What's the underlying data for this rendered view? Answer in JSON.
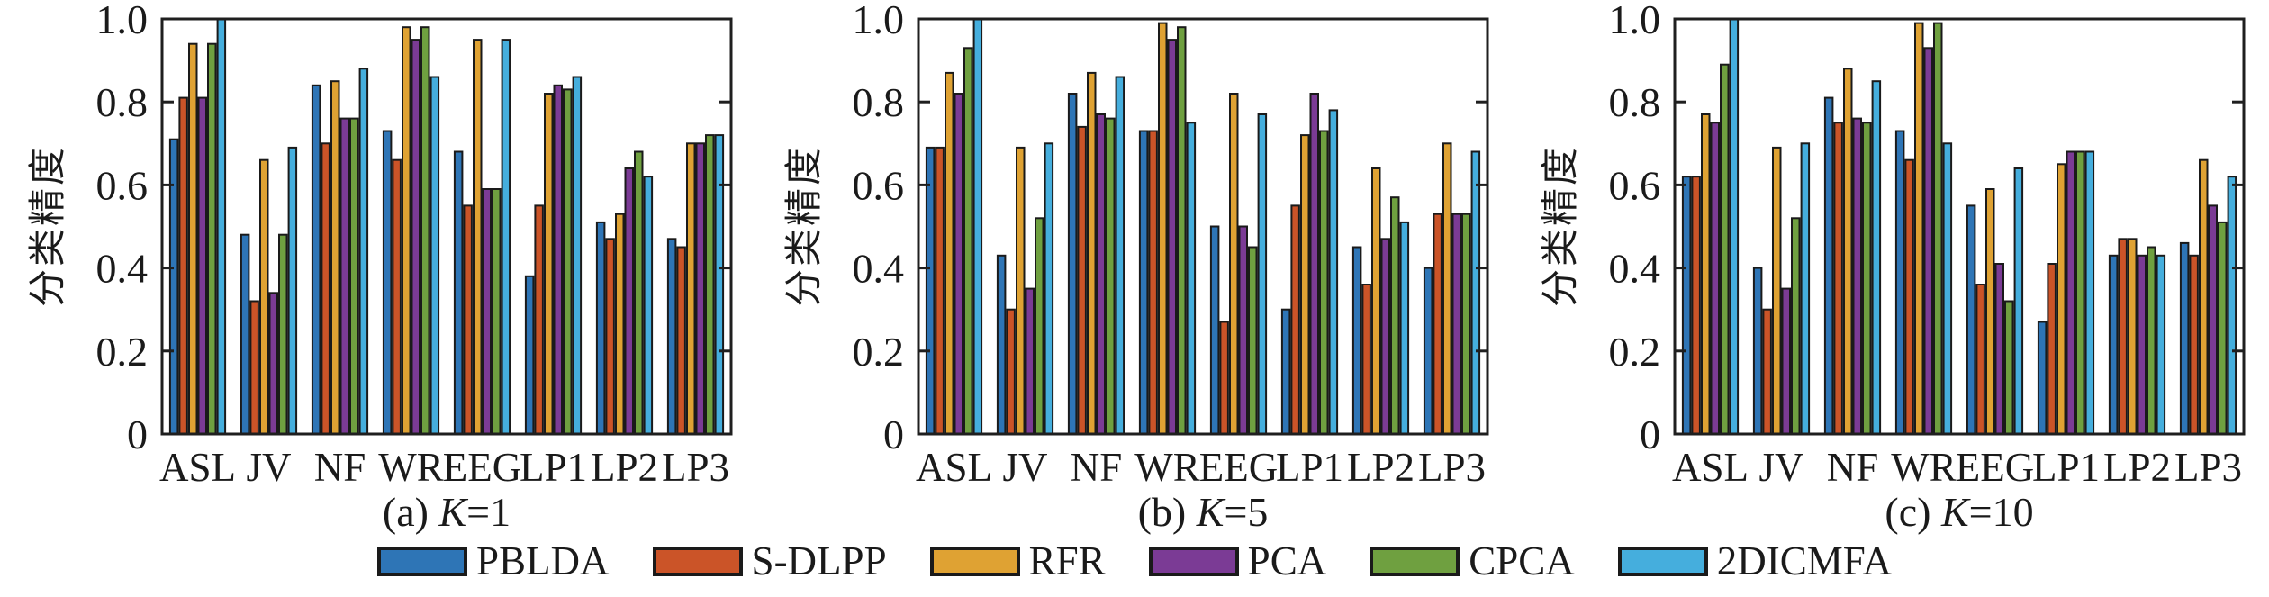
{
  "figure": {
    "background": "#ffffff",
    "ylabel": "分类精度"
  },
  "legend": {
    "position": "bottom",
    "items": [
      {
        "label": "PBLDA",
        "color": "#2E75B6"
      },
      {
        "label": "S-DLPP",
        "color": "#CB5428"
      },
      {
        "label": "RFR",
        "color": "#DFA233"
      },
      {
        "label": "PCA",
        "color": "#7B3B95"
      },
      {
        "label": "CPCA",
        "color": "#6FA040"
      },
      {
        "label": "2DICMFA",
        "color": "#45AEDD"
      }
    ]
  },
  "chart_data": [
    {
      "type": "bar",
      "title": "(a) K=1",
      "caption": {
        "prefix": "(a) ",
        "var": "K",
        "suffix": "=1"
      },
      "ylabel": "分类精度",
      "xlabel": "",
      "ylim": [
        0,
        1.0
      ],
      "yticks": [
        0,
        0.2,
        0.4,
        0.6,
        0.8,
        1.0
      ],
      "ytick_labels": [
        "0",
        "0.2",
        "0.4",
        "0.6",
        "0.8",
        "1.0"
      ],
      "grid": false,
      "categories": [
        "ASL",
        "JV",
        "NF",
        "WR",
        "EEG",
        "LP1",
        "LP2",
        "LP3"
      ],
      "series": [
        {
          "name": "PBLDA",
          "color": "#2E75B6",
          "values": [
            0.71,
            0.48,
            0.84,
            0.73,
            0.68,
            0.38,
            0.51,
            0.47
          ]
        },
        {
          "name": "S-DLPP",
          "color": "#CB5428",
          "values": [
            0.81,
            0.32,
            0.7,
            0.66,
            0.55,
            0.55,
            0.47,
            0.45
          ]
        },
        {
          "name": "RFR",
          "color": "#DFA233",
          "values": [
            0.94,
            0.66,
            0.85,
            0.98,
            0.95,
            0.82,
            0.53,
            0.7
          ]
        },
        {
          "name": "PCA",
          "color": "#7B3B95",
          "values": [
            0.81,
            0.34,
            0.76,
            0.95,
            0.59,
            0.84,
            0.64,
            0.7
          ]
        },
        {
          "name": "CPCA",
          "color": "#6FA040",
          "values": [
            0.94,
            0.48,
            0.76,
            0.98,
            0.59,
            0.83,
            0.68,
            0.72
          ]
        },
        {
          "name": "2DICMFA",
          "color": "#45AEDD",
          "values": [
            1.0,
            0.69,
            0.88,
            0.86,
            0.95,
            0.86,
            0.62,
            0.72
          ]
        }
      ]
    },
    {
      "type": "bar",
      "title": "(b) K=5",
      "caption": {
        "prefix": "(b) ",
        "var": "K",
        "suffix": "=5"
      },
      "ylabel": "分类精度",
      "xlabel": "",
      "ylim": [
        0,
        1.0
      ],
      "yticks": [
        0,
        0.2,
        0.4,
        0.6,
        0.8,
        1.0
      ],
      "ytick_labels": [
        "0",
        "0.2",
        "0.4",
        "0.6",
        "0.8",
        "1.0"
      ],
      "grid": false,
      "categories": [
        "ASL",
        "JV",
        "NF",
        "WR",
        "EEG",
        "LP1",
        "LP2",
        "LP3"
      ],
      "series": [
        {
          "name": "PBLDA",
          "color": "#2E75B6",
          "values": [
            0.69,
            0.43,
            0.82,
            0.73,
            0.5,
            0.3,
            0.45,
            0.4
          ]
        },
        {
          "name": "S-DLPP",
          "color": "#CB5428",
          "values": [
            0.69,
            0.3,
            0.74,
            0.73,
            0.27,
            0.55,
            0.36,
            0.53
          ]
        },
        {
          "name": "RFR",
          "color": "#DFA233",
          "values": [
            0.87,
            0.69,
            0.87,
            0.99,
            0.82,
            0.72,
            0.64,
            0.7
          ]
        },
        {
          "name": "PCA",
          "color": "#7B3B95",
          "values": [
            0.82,
            0.35,
            0.77,
            0.95,
            0.5,
            0.82,
            0.47,
            0.53
          ]
        },
        {
          "name": "CPCA",
          "color": "#6FA040",
          "values": [
            0.93,
            0.52,
            0.76,
            0.98,
            0.45,
            0.73,
            0.57,
            0.53
          ]
        },
        {
          "name": "2DICMFA",
          "color": "#45AEDD",
          "values": [
            1.0,
            0.7,
            0.86,
            0.75,
            0.77,
            0.78,
            0.51,
            0.68
          ]
        }
      ]
    },
    {
      "type": "bar",
      "title": "(c) K=10",
      "caption": {
        "prefix": "(c) ",
        "var": "K",
        "suffix": "=10"
      },
      "ylabel": "分类精度",
      "xlabel": "",
      "ylim": [
        0,
        1.0
      ],
      "yticks": [
        0,
        0.2,
        0.4,
        0.6,
        0.8,
        1.0
      ],
      "ytick_labels": [
        "0",
        "0.2",
        "0.4",
        "0.6",
        "0.8",
        "1.0"
      ],
      "grid": false,
      "categories": [
        "ASL",
        "JV",
        "NF",
        "WR",
        "EEG",
        "LP1",
        "LP2",
        "LP3"
      ],
      "series": [
        {
          "name": "PBLDA",
          "color": "#2E75B6",
          "values": [
            0.62,
            0.4,
            0.81,
            0.73,
            0.55,
            0.27,
            0.43,
            0.46
          ]
        },
        {
          "name": "S-DLPP",
          "color": "#CB5428",
          "values": [
            0.62,
            0.3,
            0.75,
            0.66,
            0.36,
            0.41,
            0.47,
            0.43
          ]
        },
        {
          "name": "RFR",
          "color": "#DFA233",
          "values": [
            0.77,
            0.69,
            0.88,
            0.99,
            0.59,
            0.65,
            0.47,
            0.66
          ]
        },
        {
          "name": "PCA",
          "color": "#7B3B95",
          "values": [
            0.75,
            0.35,
            0.76,
            0.93,
            0.41,
            0.68,
            0.43,
            0.55
          ]
        },
        {
          "name": "CPCA",
          "color": "#6FA040",
          "values": [
            0.89,
            0.52,
            0.75,
            0.99,
            0.32,
            0.68,
            0.45,
            0.51
          ]
        },
        {
          "name": "2DICMFA",
          "color": "#45AEDD",
          "values": [
            1.0,
            0.7,
            0.85,
            0.7,
            0.64,
            0.68,
            0.43,
            0.62
          ]
        }
      ]
    }
  ]
}
